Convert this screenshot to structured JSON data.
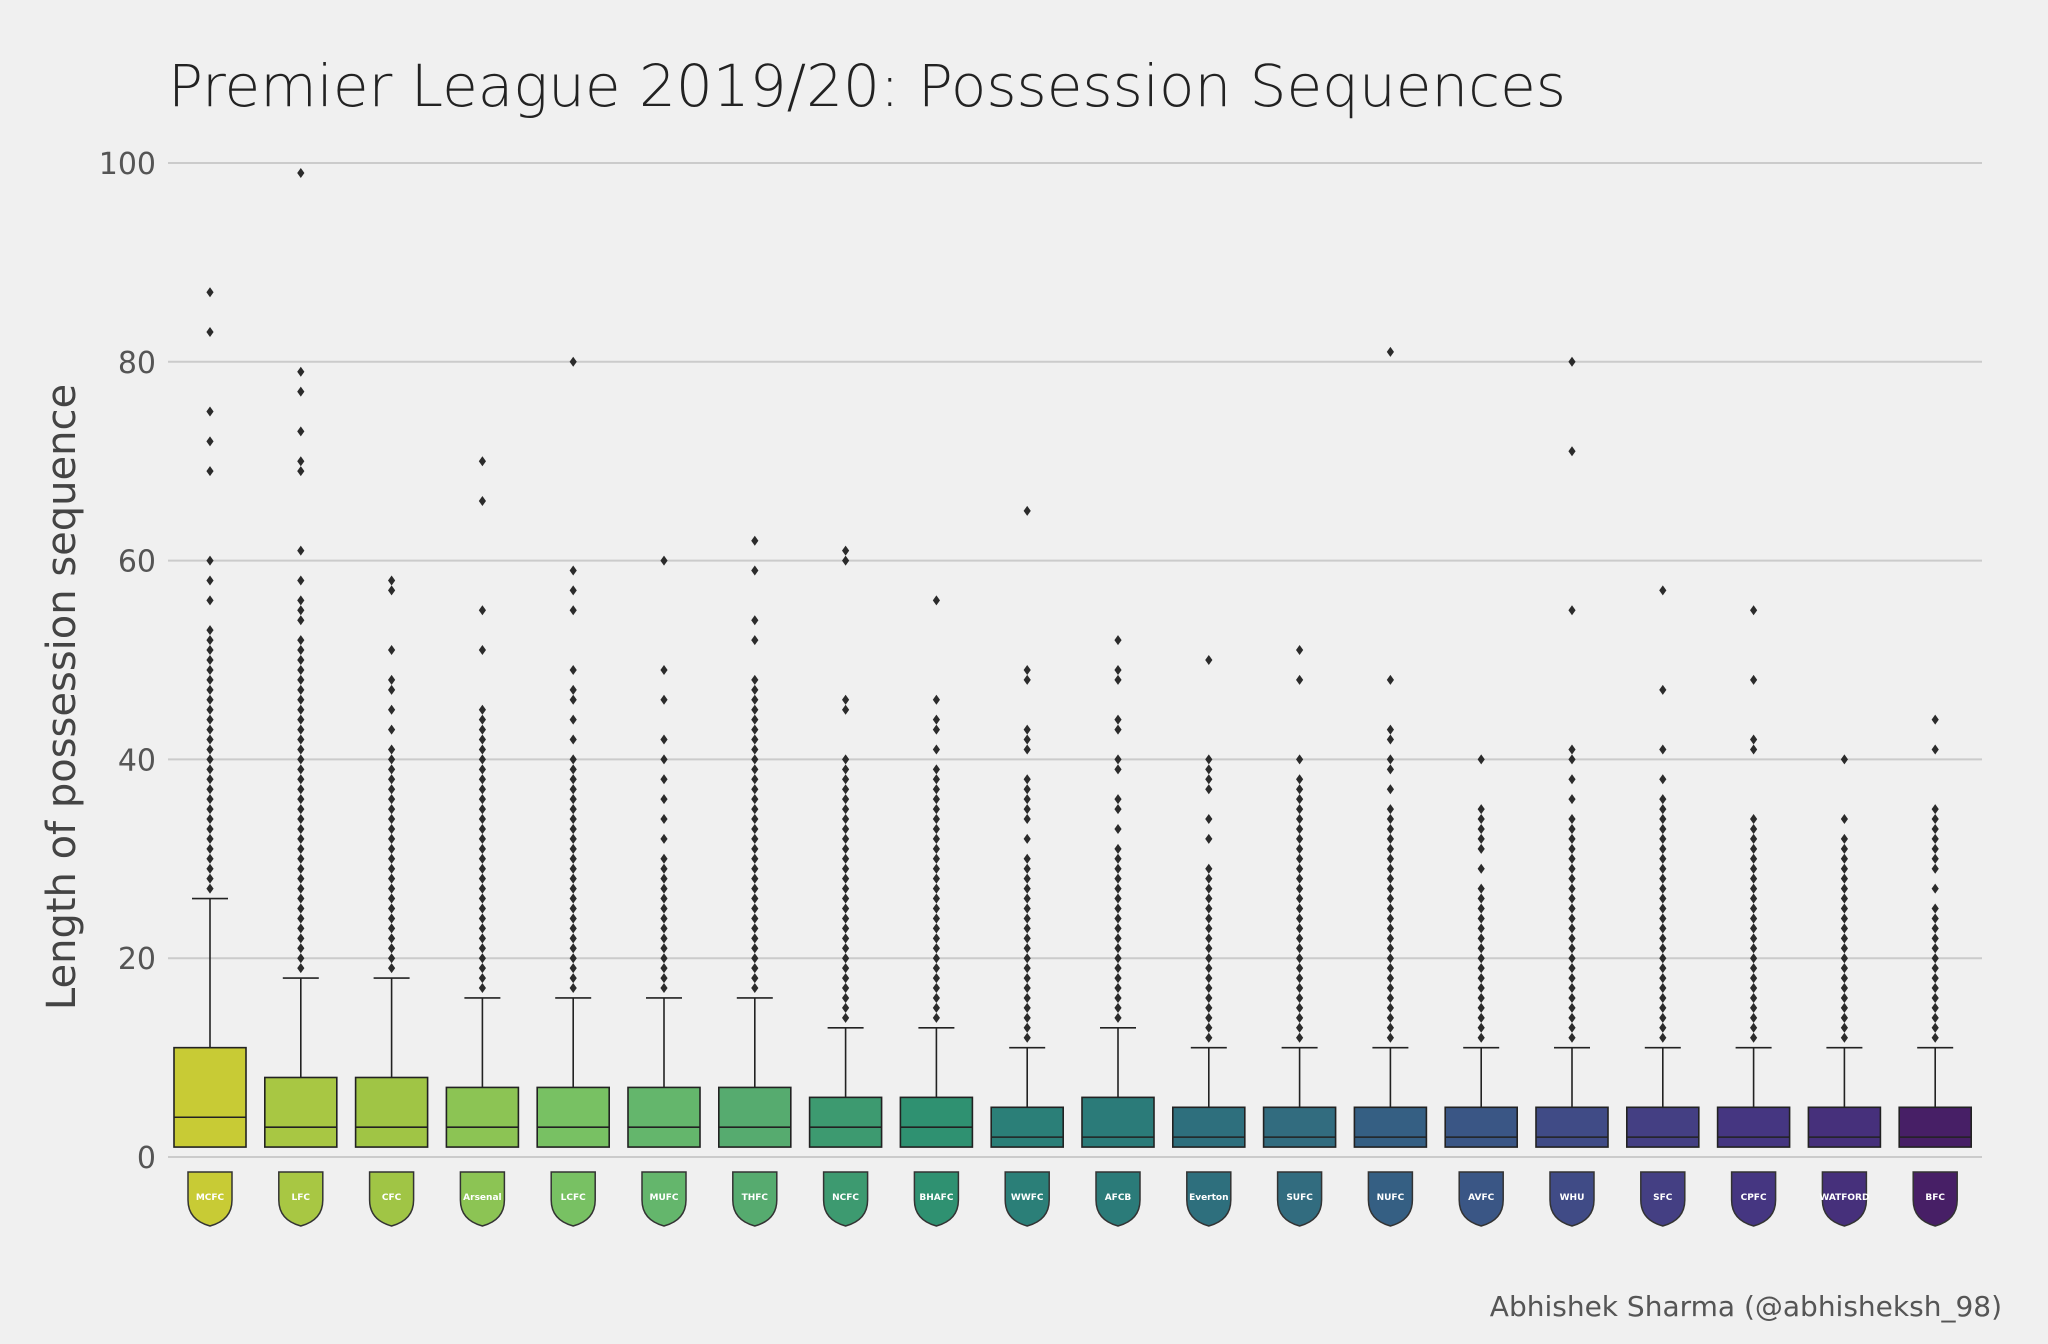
{
  "chart_data": {
    "type": "box",
    "title": "Premier League 2019/20: Possession Sequences",
    "xlabel": "",
    "ylabel": "Length of possession sequence",
    "ylim": [
      0,
      100
    ],
    "yticks": [
      0,
      20,
      40,
      60,
      80,
      100
    ],
    "grid": "horizontal",
    "categories": [
      "Manchester City",
      "Liverpool",
      "Chelsea",
      "Arsenal",
      "Leicester City",
      "Manchester United",
      "Tottenham Hotspur",
      "Norwich City",
      "Brighton & Hove Albion",
      "Wolverhampton Wanderers",
      "AFC Bournemouth",
      "Everton",
      "Sheffield United",
      "Newcastle United",
      "Aston Villa",
      "West Ham United",
      "Southampton",
      "Crystal Palace",
      "Watford",
      "Burnley"
    ],
    "series": [
      {
        "q1": 1,
        "median": 4,
        "q3": 11,
        "whisker_low": 1,
        "whisker_high": 26,
        "outliers": [
          27,
          28,
          29,
          30,
          31,
          32,
          33,
          34,
          35,
          36,
          37,
          38,
          39,
          40,
          41,
          42,
          43,
          44,
          45,
          46,
          47,
          48,
          49,
          50,
          51,
          52,
          53,
          56,
          58,
          60,
          69,
          72,
          75,
          83,
          87
        ]
      },
      {
        "q1": 1,
        "median": 3,
        "q3": 8,
        "whisker_low": 1,
        "whisker_high": 18,
        "outliers": [
          19,
          20,
          21,
          22,
          23,
          24,
          25,
          26,
          27,
          28,
          29,
          30,
          31,
          32,
          33,
          34,
          35,
          36,
          37,
          38,
          39,
          40,
          41,
          42,
          43,
          44,
          45,
          46,
          47,
          48,
          49,
          50,
          51,
          52,
          54,
          55,
          56,
          58,
          61,
          69,
          70,
          73,
          77,
          79,
          99
        ]
      },
      {
        "q1": 1,
        "median": 3,
        "q3": 8,
        "whisker_low": 1,
        "whisker_high": 18,
        "outliers": [
          19,
          20,
          21,
          22,
          23,
          24,
          25,
          26,
          27,
          28,
          29,
          30,
          31,
          32,
          33,
          34,
          35,
          36,
          37,
          38,
          39,
          40,
          41,
          43,
          45,
          47,
          48,
          51,
          57,
          58
        ]
      },
      {
        "q1": 1,
        "median": 3,
        "q3": 7,
        "whisker_low": 1,
        "whisker_high": 16,
        "outliers": [
          17,
          18,
          19,
          20,
          21,
          22,
          23,
          24,
          25,
          26,
          27,
          28,
          29,
          30,
          31,
          32,
          33,
          34,
          35,
          36,
          37,
          38,
          39,
          40,
          41,
          42,
          43,
          44,
          45,
          51,
          55,
          66,
          70
        ]
      },
      {
        "q1": 1,
        "median": 3,
        "q3": 7,
        "whisker_low": 1,
        "whisker_high": 16,
        "outliers": [
          17,
          18,
          19,
          20,
          21,
          22,
          23,
          24,
          25,
          26,
          27,
          28,
          29,
          30,
          31,
          32,
          33,
          34,
          35,
          36,
          37,
          38,
          39,
          40,
          42,
          44,
          46,
          47,
          49,
          55,
          57,
          59,
          80
        ]
      },
      {
        "q1": 1,
        "median": 3,
        "q3": 7,
        "whisker_low": 1,
        "whisker_high": 16,
        "outliers": [
          17,
          18,
          19,
          20,
          21,
          22,
          23,
          24,
          25,
          26,
          27,
          28,
          29,
          30,
          32,
          34,
          36,
          38,
          40,
          42,
          46,
          49,
          60
        ]
      },
      {
        "q1": 1,
        "median": 3,
        "q3": 7,
        "whisker_low": 1,
        "whisker_high": 16,
        "outliers": [
          17,
          18,
          19,
          20,
          21,
          22,
          23,
          24,
          25,
          26,
          27,
          28,
          29,
          30,
          31,
          32,
          33,
          34,
          35,
          36,
          37,
          38,
          39,
          40,
          41,
          42,
          43,
          44,
          45,
          46,
          47,
          48,
          52,
          54,
          59,
          62
        ]
      },
      {
        "q1": 1,
        "median": 3,
        "q3": 6,
        "whisker_low": 1,
        "whisker_high": 13,
        "outliers": [
          14,
          15,
          16,
          17,
          18,
          19,
          20,
          21,
          22,
          23,
          24,
          25,
          26,
          27,
          28,
          29,
          30,
          31,
          32,
          33,
          34,
          35,
          36,
          37,
          38,
          39,
          40,
          45,
          46,
          60,
          61
        ]
      },
      {
        "q1": 1,
        "median": 3,
        "q3": 6,
        "whisker_low": 1,
        "whisker_high": 13,
        "outliers": [
          14,
          15,
          16,
          17,
          18,
          19,
          20,
          21,
          22,
          23,
          24,
          25,
          26,
          27,
          28,
          29,
          30,
          31,
          32,
          33,
          34,
          35,
          36,
          37,
          38,
          39,
          41,
          43,
          44,
          46,
          56
        ]
      },
      {
        "q1": 1,
        "median": 2,
        "q3": 5,
        "whisker_low": 1,
        "whisker_high": 11,
        "outliers": [
          12,
          13,
          14,
          15,
          16,
          17,
          18,
          19,
          20,
          21,
          22,
          23,
          24,
          25,
          26,
          27,
          28,
          29,
          30,
          32,
          34,
          35,
          36,
          37,
          38,
          41,
          42,
          43,
          48,
          49,
          65
        ]
      },
      {
        "q1": 1,
        "median": 2,
        "q3": 6,
        "whisker_low": 1,
        "whisker_high": 13,
        "outliers": [
          14,
          15,
          16,
          17,
          18,
          19,
          20,
          21,
          22,
          23,
          24,
          25,
          26,
          27,
          28,
          29,
          30,
          31,
          33,
          35,
          36,
          39,
          40,
          43,
          44,
          48,
          49,
          52
        ]
      },
      {
        "q1": 1,
        "median": 2,
        "q3": 5,
        "whisker_low": 1,
        "whisker_high": 11,
        "outliers": [
          12,
          13,
          14,
          15,
          16,
          17,
          18,
          19,
          20,
          21,
          22,
          23,
          24,
          25,
          26,
          27,
          28,
          29,
          32,
          34,
          37,
          38,
          39,
          40,
          50
        ]
      },
      {
        "q1": 1,
        "median": 2,
        "q3": 5,
        "whisker_low": 1,
        "whisker_high": 11,
        "outliers": [
          12,
          13,
          14,
          15,
          16,
          17,
          18,
          19,
          20,
          21,
          22,
          23,
          24,
          25,
          26,
          27,
          28,
          29,
          30,
          31,
          32,
          33,
          34,
          35,
          36,
          37,
          38,
          40,
          48,
          51
        ]
      },
      {
        "q1": 1,
        "median": 2,
        "q3": 5,
        "whisker_low": 1,
        "whisker_high": 11,
        "outliers": [
          12,
          13,
          14,
          15,
          16,
          17,
          18,
          19,
          20,
          21,
          22,
          23,
          24,
          25,
          26,
          27,
          28,
          29,
          30,
          31,
          32,
          33,
          34,
          35,
          37,
          39,
          40,
          42,
          43,
          48,
          81
        ]
      },
      {
        "q1": 1,
        "median": 2,
        "q3": 5,
        "whisker_low": 1,
        "whisker_high": 11,
        "outliers": [
          12,
          13,
          14,
          15,
          16,
          17,
          18,
          19,
          20,
          21,
          22,
          23,
          24,
          25,
          26,
          27,
          29,
          31,
          32,
          33,
          34,
          35,
          40
        ]
      },
      {
        "q1": 1,
        "median": 2,
        "q3": 5,
        "whisker_low": 1,
        "whisker_high": 11,
        "outliers": [
          12,
          13,
          14,
          15,
          16,
          17,
          18,
          19,
          20,
          21,
          22,
          23,
          24,
          25,
          26,
          27,
          28,
          29,
          30,
          31,
          32,
          33,
          34,
          36,
          38,
          40,
          41,
          55,
          71,
          80
        ]
      },
      {
        "q1": 1,
        "median": 2,
        "q3": 5,
        "whisker_low": 1,
        "whisker_high": 11,
        "outliers": [
          12,
          13,
          14,
          15,
          16,
          17,
          18,
          19,
          20,
          21,
          22,
          23,
          24,
          25,
          26,
          27,
          28,
          29,
          30,
          31,
          32,
          33,
          34,
          35,
          36,
          38,
          41,
          47,
          57
        ]
      },
      {
        "q1": 1,
        "median": 2,
        "q3": 5,
        "whisker_low": 1,
        "whisker_high": 11,
        "outliers": [
          12,
          13,
          14,
          15,
          16,
          17,
          18,
          19,
          20,
          21,
          22,
          23,
          24,
          25,
          26,
          27,
          28,
          29,
          30,
          31,
          32,
          33,
          34,
          41,
          42,
          48,
          55
        ]
      },
      {
        "q1": 1,
        "median": 2,
        "q3": 5,
        "whisker_low": 1,
        "whisker_high": 11,
        "outliers": [
          12,
          13,
          14,
          15,
          16,
          17,
          18,
          19,
          20,
          21,
          22,
          23,
          24,
          25,
          26,
          27,
          28,
          29,
          30,
          31,
          32,
          34,
          40
        ]
      },
      {
        "q1": 1,
        "median": 2,
        "q3": 5,
        "whisker_low": 1,
        "whisker_high": 11,
        "outliers": [
          12,
          13,
          14,
          15,
          16,
          17,
          18,
          19,
          20,
          21,
          22,
          23,
          24,
          25,
          27,
          29,
          30,
          31,
          32,
          33,
          34,
          35,
          41,
          44
        ]
      }
    ],
    "box_colors": [
      "#c8cb35",
      "#a8c743",
      "#a0c545",
      "#8cc454",
      "#78c163",
      "#64b66c",
      "#56ab6f",
      "#3d9a70",
      "#2f9171",
      "#2b7f78",
      "#2b7b79",
      "#2e6f7d",
      "#326c7f",
      "#355f83",
      "#3a5685",
      "#404b86",
      "#443f83",
      "#453681",
      "#46307b",
      "#471f66"
    ],
    "logo_labels": [
      "MCFC",
      "LFC",
      "CFC",
      "Arsenal",
      "LCFC",
      "MUFC",
      "THFC",
      "NCFC",
      "BHAFC",
      "WWFC",
      "AFCB",
      "Everton",
      "SUFC",
      "NUFC",
      "AVFC",
      "WHU",
      "SFC",
      "CPFC",
      "WATFORD",
      "BFC"
    ],
    "credit": "Abhishek Sharma (@abhisheksh_98)"
  }
}
